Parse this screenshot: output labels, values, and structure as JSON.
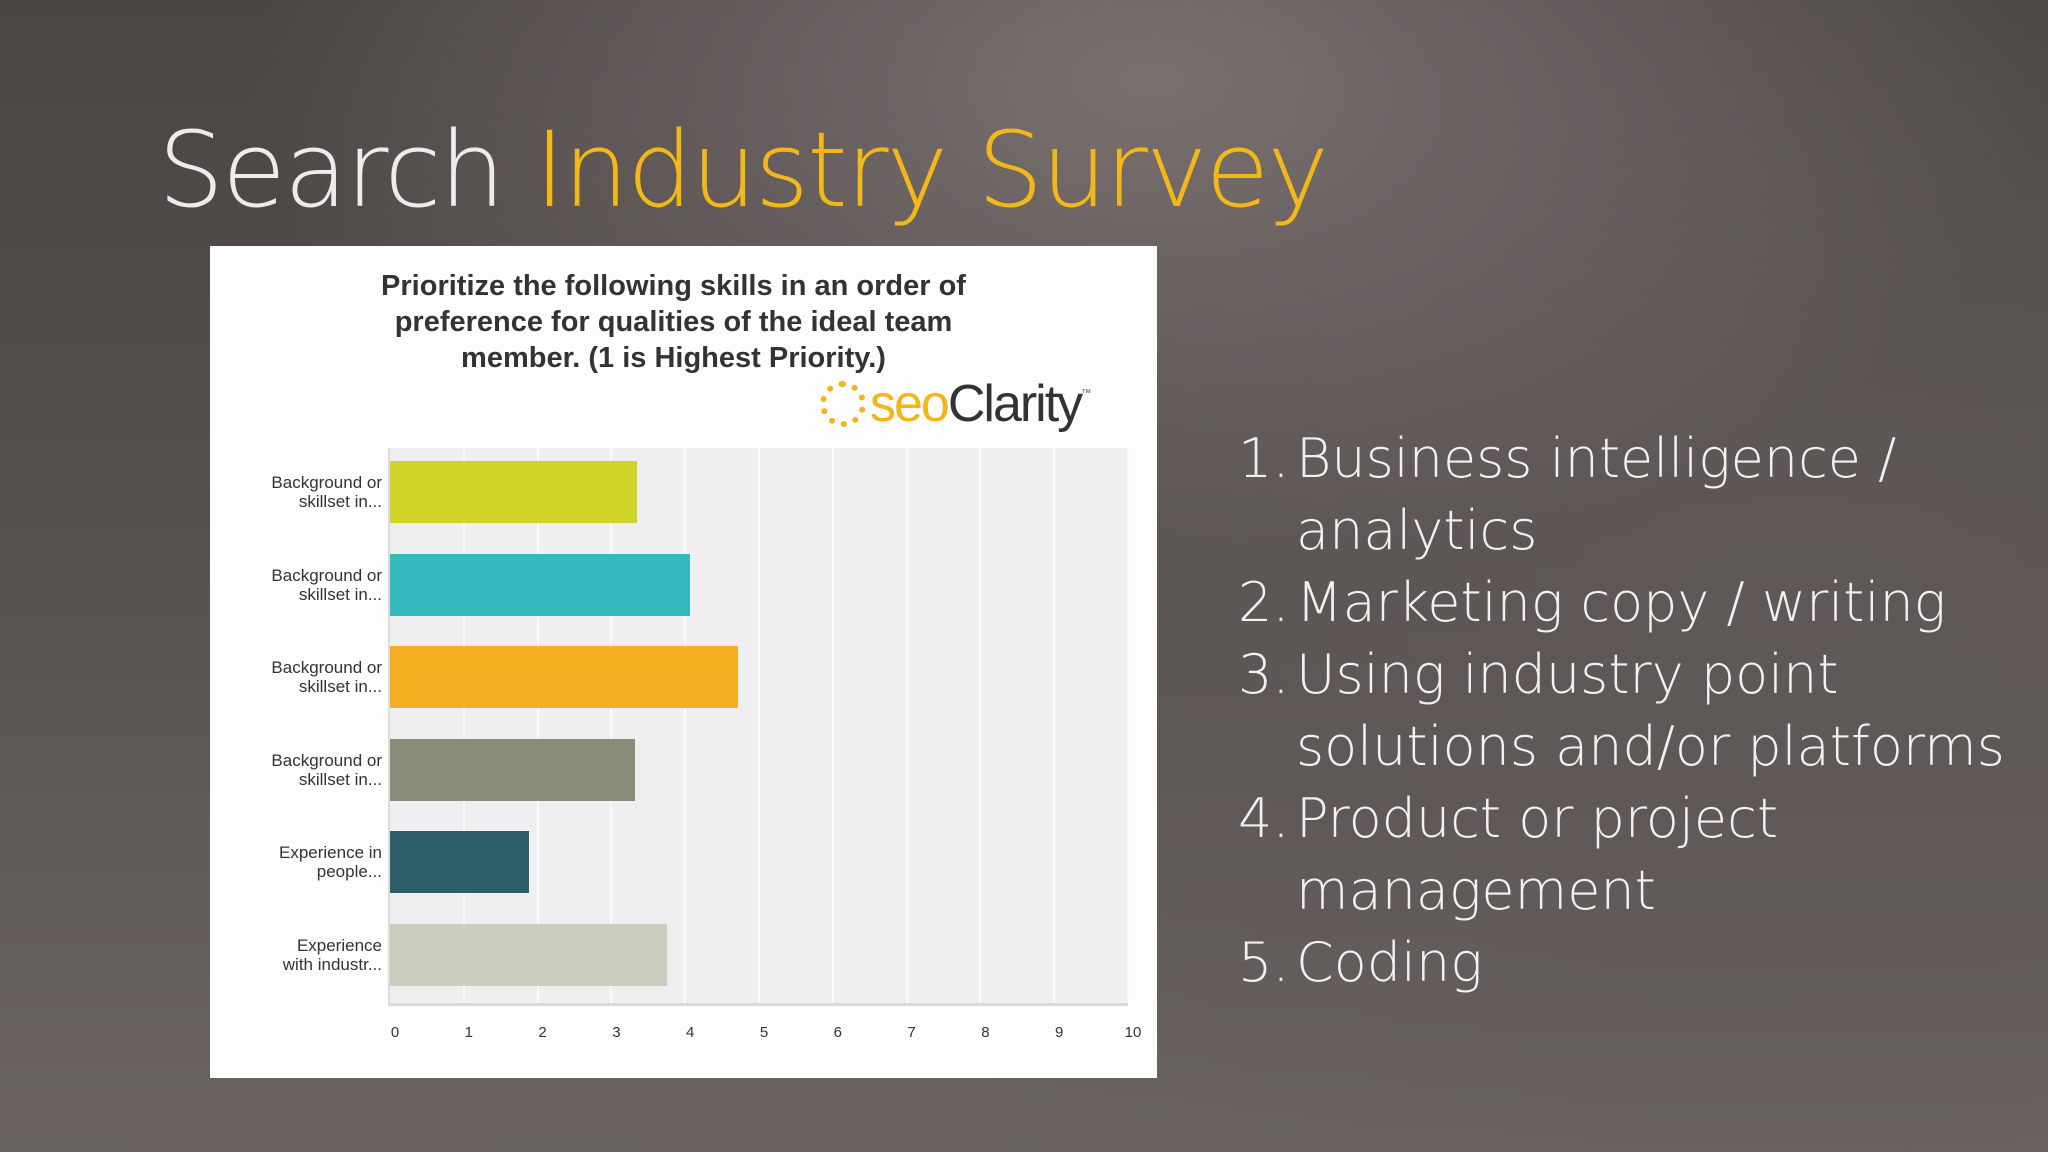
{
  "slide": {
    "title_part1": "Search ",
    "title_part2": "Industry Survey",
    "colors": {
      "title_white": "#ececec",
      "title_accent": "#f2b81a"
    }
  },
  "chart_card": {
    "question_lines": [
      "Prioritize the following skills in an order of",
      "preference for qualities of the ideal team",
      "member. (1 is Highest Priority.)"
    ],
    "logo": {
      "seo": "seo",
      "clarity": "Clarity",
      "tm": "™"
    }
  },
  "chart_data": {
    "type": "bar",
    "orientation": "horizontal",
    "title": "Prioritize the following skills in an order of preference for qualities of the ideal team member. (1 is Highest Priority.)",
    "categories": [
      "Background or skillset in...",
      "Background or skillset in...",
      "Background or skillset in...",
      "Background or skillset in...",
      "Experience in people...",
      "Experience with industr..."
    ],
    "category_lines": [
      [
        "Background or",
        "skillset in..."
      ],
      [
        "Background or",
        "skillset in..."
      ],
      [
        "Background or",
        "skillset in..."
      ],
      [
        "Background or",
        "skillset in..."
      ],
      [
        "Experience in",
        "people..."
      ],
      [
        "Experience",
        "with industr..."
      ]
    ],
    "values": [
      3.35,
      4.06,
      4.72,
      3.32,
      1.88,
      3.76
    ],
    "colors": [
      "#d0d428",
      "#36babf",
      "#f3ae21",
      "#8a8b79",
      "#2f5e6b",
      "#cccdbe"
    ],
    "xlabel": "",
    "ylabel": "",
    "xlim": [
      0,
      10
    ],
    "xticks": [
      "0",
      "1",
      "2",
      "3",
      "4",
      "5",
      "6",
      "7",
      "8",
      "9",
      "10"
    ],
    "grid": true,
    "legend": "none"
  },
  "ranking": {
    "items": [
      {
        "num": "1.",
        "text": "Business intelligence / analytics"
      },
      {
        "num": "2.",
        "text": "Marketing copy / writing"
      },
      {
        "num": "3.",
        "text": "Using industry point solutions and/or platforms"
      },
      {
        "num": "4.",
        "text": "Product or project management"
      },
      {
        "num": "5.",
        "text": "Coding"
      }
    ]
  }
}
